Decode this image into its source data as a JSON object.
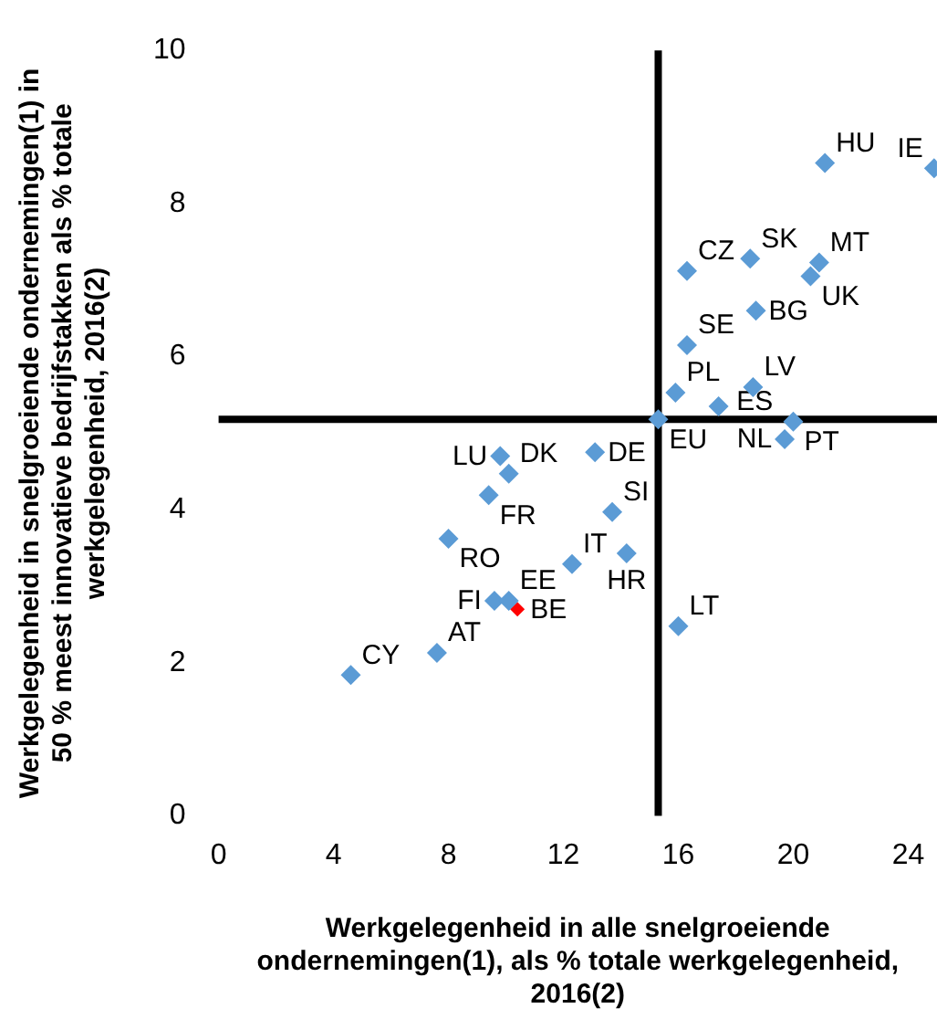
{
  "chart_data": {
    "type": "scatter",
    "xlabel": "Werkgelegenheid in alle snelgroeiende ondernemingen(1), als % totale werkgelegenheid, 2016(2)",
    "ylabel": "Werkgelegenheid in snelgroeiende ondernemingen(1) in 50 % meest innovatieve bedrijfstakken als % totale werkgelegenheid, 2016(2)",
    "series": [
      {
        "color": "#5b9bd5",
        "x": [
          21.1,
          24.9,
          16.3,
          18.5,
          20.9,
          20.6,
          18.7,
          16.3,
          15.9,
          18.6,
          15.3,
          17.4,
          20.0,
          19.7,
          13.1,
          9.8,
          10.1,
          9.4,
          8.0,
          13.7,
          12.3,
          14.2,
          9.6,
          10.1,
          16.0,
          7.6,
          4.6
        ],
        "values": [
          8.53,
          8.46,
          7.12,
          7.28,
          7.23,
          7.05,
          6.6,
          6.15,
          5.53,
          5.6,
          5.18,
          5.35,
          5.15,
          4.92,
          4.75,
          4.7,
          4.47,
          4.19,
          3.62,
          3.97,
          3.29,
          3.43,
          2.81,
          2.81,
          2.48,
          2.13,
          1.84
        ]
      },
      {
        "color": "#ff0000",
        "x": [
          10.4
        ],
        "values": [
          2.7
        ]
      }
    ],
    "annotations": [
      {
        "text": "HU",
        "x": 21.1,
        "y": 8.53
      },
      {
        "text": "IE",
        "x": 24.9,
        "y": 8.46
      },
      {
        "text": "CZ",
        "x": 16.3,
        "y": 7.12
      },
      {
        "text": "SK",
        "x": 18.5,
        "y": 7.28
      },
      {
        "text": "MT",
        "x": 20.9,
        "y": 7.23
      },
      {
        "text": "UK",
        "x": 20.6,
        "y": 7.05
      },
      {
        "text": "BG",
        "x": 18.7,
        "y": 6.6
      },
      {
        "text": "SE",
        "x": 16.3,
        "y": 6.15
      },
      {
        "text": "PL",
        "x": 15.9,
        "y": 5.53
      },
      {
        "text": "LV",
        "x": 18.6,
        "y": 5.6
      },
      {
        "text": "EU",
        "x": 15.3,
        "y": 5.18
      },
      {
        "text": "ES",
        "x": 17.4,
        "y": 5.35
      },
      {
        "text": "PT",
        "x": 20.0,
        "y": 5.15
      },
      {
        "text": "NL",
        "x": 19.7,
        "y": 4.92
      },
      {
        "text": "DE",
        "x": 13.1,
        "y": 4.75
      },
      {
        "text": "LU",
        "x": 9.8,
        "y": 4.7
      },
      {
        "text": "DK",
        "x": 10.1,
        "y": 4.47
      },
      {
        "text": "FR",
        "x": 9.4,
        "y": 4.19
      },
      {
        "text": "RO",
        "x": 8.0,
        "y": 3.62
      },
      {
        "text": "SI",
        "x": 13.7,
        "y": 3.97
      },
      {
        "text": "IT",
        "x": 12.3,
        "y": 3.29
      },
      {
        "text": "HR",
        "x": 14.2,
        "y": 3.43
      },
      {
        "text": "FI",
        "x": 9.6,
        "y": 2.81
      },
      {
        "text": "EE",
        "x": 10.1,
        "y": 2.81
      },
      {
        "text": "LT",
        "x": 16.0,
        "y": 2.48
      },
      {
        "text": "AT",
        "x": 7.6,
        "y": 2.13
      },
      {
        "text": "CY",
        "x": 4.6,
        "y": 1.84
      },
      {
        "text": "BE",
        "x": 10.4,
        "y": 2.7
      }
    ],
    "ref_lines": [
      {
        "axis": "x",
        "value": 15.3,
        "color": "#000000"
      },
      {
        "axis": "y",
        "value": 5.18,
        "color": "#000000"
      }
    ],
    "xlim": [
      0,
      25
    ],
    "xticks": [
      0,
      4,
      8,
      12,
      16,
      20,
      24
    ],
    "ylim": [
      0,
      10
    ],
    "yticks": [
      0,
      2,
      4,
      6,
      8,
      10
    ],
    "grid": false,
    "legend": false,
    "marker": "diamond"
  }
}
